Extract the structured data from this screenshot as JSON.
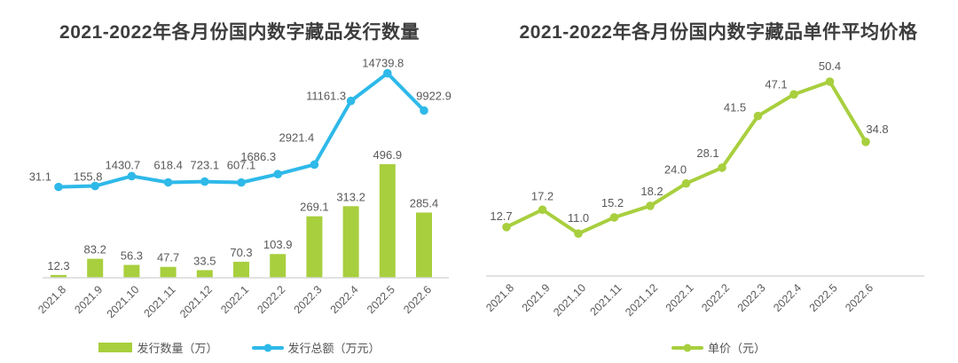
{
  "colors": {
    "green": "#a8cf3e",
    "blue": "#2eb9e9",
    "label": "#595959",
    "axis": "#d9d9d9",
    "title": "#3d3d3d"
  },
  "chart_data": [
    {
      "type": "combo",
      "title": "2021-2022年各月份国内数字藏品发行数量",
      "categories": [
        "2021.8",
        "2021.9",
        "2021.10",
        "2021.11",
        "2021.12",
        "2022.1",
        "2022.2",
        "2022.3",
        "2022.4",
        "2022.5",
        "2022.6"
      ],
      "series": [
        {
          "name": "发行数量（万）",
          "type": "bar",
          "color": "#a8cf3e",
          "values": [
            12.3,
            83.2,
            56.3,
            47.7,
            33.5,
            70.3,
            103.9,
            269.1,
            313.2,
            496.9,
            285.4
          ]
        },
        {
          "name": "发行总额（万元）",
          "type": "line",
          "color": "#2eb9e9",
          "values": [
            31.1,
            155.8,
            1430.7,
            618.4,
            723.1,
            607.1,
            1686.3,
            2921.4,
            11161.3,
            14739.8,
            9922.9
          ]
        }
      ],
      "value_labels": true,
      "grid": false,
      "legend_position": "bottom"
    },
    {
      "type": "line",
      "title": "2021-2022年各月份国内数字藏品单件平均价格",
      "categories": [
        "2021.8",
        "2021.9",
        "2021.10",
        "2021.11",
        "2021.12",
        "2022.1",
        "2022.2",
        "2022.3",
        "2022.4",
        "2022.5",
        "2022.6"
      ],
      "series": [
        {
          "name": "单价（元）",
          "type": "line",
          "color": "#a8cf3e",
          "values": [
            12.7,
            17.2,
            11.0,
            15.2,
            18.2,
            24.0,
            28.1,
            41.5,
            47.1,
            50.4,
            34.8
          ]
        }
      ],
      "ylim": [
        0,
        55
      ],
      "value_labels": true,
      "grid": false,
      "legend_position": "bottom"
    }
  ]
}
